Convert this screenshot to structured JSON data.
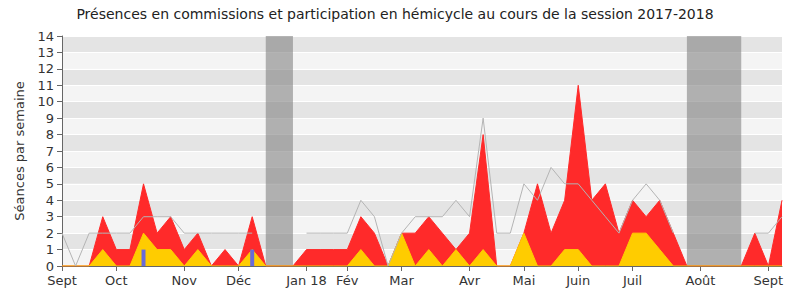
{
  "chart_data": {
    "type": "line",
    "title": "Présences en commissions et participation en hémicycle au cours de la session 2017-2018",
    "y_label": "Séances par semaine",
    "categories": [
      "Sept",
      null,
      null,
      null,
      "Oct",
      null,
      null,
      null,
      null,
      "Nov",
      null,
      null,
      null,
      "Déc",
      null,
      null,
      null,
      null,
      "Jan 18",
      null,
      null,
      "Fév",
      null,
      null,
      null,
      "Mar",
      null,
      null,
      null,
      null,
      "Avr",
      null,
      null,
      null,
      "Mai",
      null,
      null,
      null,
      "Juin",
      null,
      null,
      null,
      "Juil",
      null,
      null,
      null,
      null,
      "Août",
      null,
      null,
      null,
      null,
      "Sept",
      null
    ],
    "series": [
      {
        "type": "area",
        "color": "#ff2a2a",
        "values": [
          0,
          0,
          0,
          3,
          1,
          1,
          5,
          2,
          3,
          1,
          2,
          0,
          1,
          0,
          3,
          0,
          0,
          0,
          1,
          1,
          1,
          1,
          3,
          2,
          0,
          2,
          2,
          3,
          2,
          1,
          2,
          8,
          0,
          0,
          2,
          5,
          2,
          4,
          11,
          4,
          5,
          2,
          4,
          3,
          4,
          2,
          0,
          0,
          0,
          0,
          0,
          2,
          0,
          4
        ]
      },
      {
        "type": "area",
        "color": "#ffcc00",
        "values": [
          0,
          0,
          0,
          1,
          0,
          0,
          2,
          1,
          1,
          0,
          1,
          0,
          0,
          0,
          1,
          0,
          0,
          0,
          0,
          0,
          0,
          0,
          1,
          0,
          0,
          2,
          0,
          1,
          0,
          1,
          0,
          1,
          0,
          0,
          2,
          0,
          0,
          1,
          1,
          0,
          0,
          0,
          2,
          2,
          1,
          0,
          0,
          0,
          0,
          0,
          0,
          0,
          0,
          0
        ]
      },
      {
        "type": "line",
        "color": "#b4b4b4",
        "line_style": "solid",
        "values": [
          2,
          0,
          2,
          2,
          2,
          2,
          3,
          3,
          3,
          2,
          2,
          2,
          2,
          2,
          2,
          null,
          null,
          null,
          2,
          2,
          2,
          2,
          4,
          3,
          0,
          2,
          3,
          3,
          3,
          4,
          3,
          9,
          2,
          2,
          5,
          4,
          6,
          5,
          5,
          4,
          3,
          2,
          4,
          5,
          4,
          2,
          null,
          null,
          null,
          null,
          null,
          2,
          2,
          3
        ]
      },
      {
        "type": "bar",
        "color": "#6a6ad8",
        "values": [
          0,
          0,
          0,
          0,
          0,
          0,
          1,
          0,
          0,
          0,
          0,
          0,
          0,
          0,
          1,
          0,
          0,
          0,
          0,
          0,
          0,
          0,
          0,
          0,
          0,
          0,
          0,
          0,
          0,
          0,
          0,
          0,
          0,
          0,
          0,
          0,
          0,
          0,
          0,
          0,
          0,
          0,
          0,
          0,
          0,
          0,
          0,
          0,
          0,
          0,
          0,
          0,
          0,
          0
        ]
      }
    ],
    "shaded_ranges": [
      [
        15,
        17
      ],
      [
        46,
        50
      ]
    ],
    "ylim": [
      0,
      14
    ],
    "yticks": [
      0,
      1,
      2,
      3,
      4,
      5,
      6,
      7,
      8,
      9,
      10,
      11,
      12,
      13,
      14
    ],
    "grid": true
  }
}
